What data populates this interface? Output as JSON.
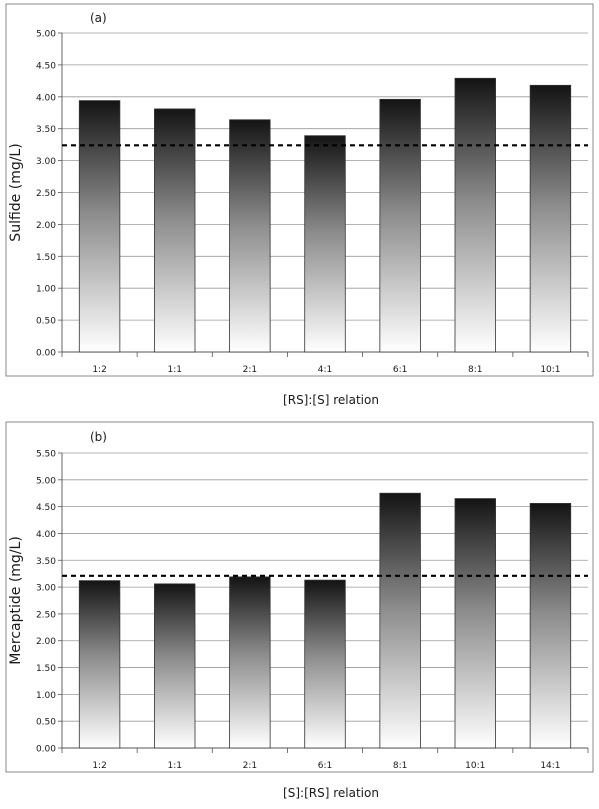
{
  "chart_data": [
    {
      "type": "bar",
      "panel_label": "(a)",
      "categories": [
        "1:2",
        "1:1",
        "2:1",
        "4:1",
        "6:1",
        "8:1",
        "10:1"
      ],
      "values": [
        3.94,
        3.81,
        3.64,
        3.39,
        3.96,
        4.29,
        4.18
      ],
      "reference_line": 3.24,
      "xlabel": "[RS]:[S] relation",
      "ylabel": "Sulfide (mg/L)",
      "ylim": [
        0,
        5
      ],
      "yticks": [
        "0.00",
        "0.50",
        "1.00",
        "1.50",
        "2.00",
        "2.50",
        "3.00",
        "3.50",
        "4.00",
        "4.50",
        "5.00"
      ],
      "grid": true,
      "legend": "none"
    },
    {
      "type": "bar",
      "panel_label": "(b)",
      "categories": [
        "1:2",
        "1:1",
        "2:1",
        "6:1",
        "8:1",
        "10:1",
        "14:1"
      ],
      "values": [
        3.12,
        3.06,
        3.19,
        3.13,
        4.75,
        4.65,
        4.56
      ],
      "reference_line": 3.21,
      "xlabel": "[S]:[RS] relation",
      "ylabel": "Mercaptide (mg/L)",
      "ylim": [
        0,
        5.5
      ],
      "yticks": [
        "0.00",
        "0.50",
        "1.00",
        "1.50",
        "2.00",
        "2.50",
        "3.00",
        "3.50",
        "4.00",
        "4.50",
        "5.00",
        "5.50"
      ],
      "grid": true,
      "legend": "none"
    }
  ]
}
